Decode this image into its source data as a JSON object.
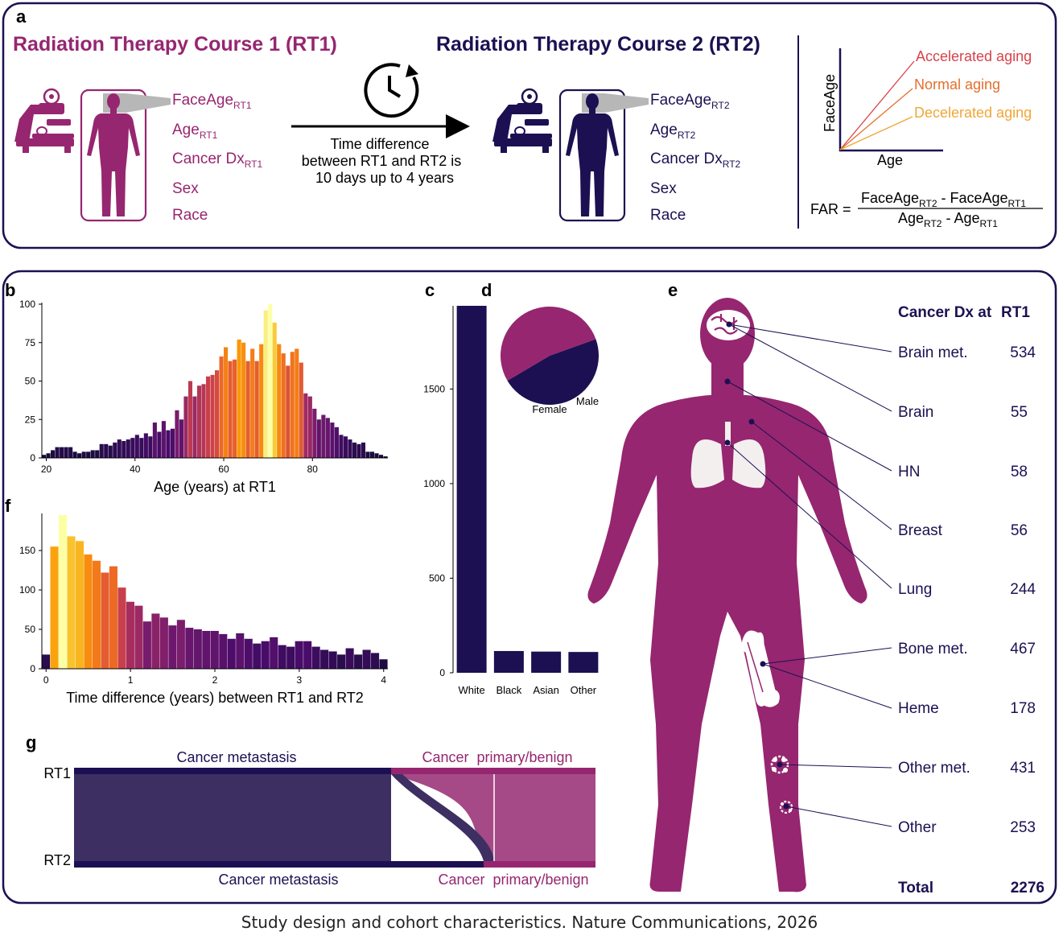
{
  "colors": {
    "magenta": "#962670",
    "navy": "#1c1052",
    "accel": "#d8434a",
    "normal": "#e2702c",
    "decel": "#f0a637",
    "lung": "#f3efef"
  },
  "panel_a": {
    "label": "a",
    "rt1_title": "Radiation Therapy Course 1 (RT1)",
    "rt2_title": "Radiation Therapy Course 2 (RT2)",
    "rt1_fields": [
      {
        "base": "FaceAge",
        "sub": "RT1"
      },
      {
        "base": "Age",
        "sub": "RT1"
      },
      {
        "base": "Cancer Dx",
        "sub": "RT1"
      },
      {
        "base": "Sex",
        "sub": ""
      },
      {
        "base": "Race",
        "sub": ""
      }
    ],
    "rt2_fields": [
      {
        "base": "FaceAge",
        "sub": "RT2"
      },
      {
        "base": "Age",
        "sub": "RT2"
      },
      {
        "base": "Cancer Dx",
        "sub": "RT2"
      },
      {
        "base": "Sex",
        "sub": ""
      },
      {
        "base": "Race",
        "sub": ""
      }
    ],
    "time_text": [
      "Time difference",
      "between RT1 and RT2 is",
      "10 days up to 4 years"
    ],
    "aging": {
      "ylabel": "FaceAge",
      "xlabel": "Age",
      "lines": [
        "Accelerated aging",
        "Normal aging",
        "Decelerated aging"
      ]
    },
    "far": {
      "lhs": "FAR =",
      "num_a": "FaceAge",
      "num_a_sub": "RT2",
      "minus": " - ",
      "num_b": "FaceAge",
      "num_b_sub": "RT1",
      "den_a": "Age",
      "den_a_sub": "RT2",
      "den_b": "Age",
      "den_b_sub": "RT1"
    },
    "icons": [
      "clock-icon",
      "radiotherapy-machine-icon",
      "human-silhouette-icon",
      "arrow-right-icon"
    ]
  },
  "panel_labels": {
    "b": "b",
    "c": "c",
    "d": "d",
    "e": "e",
    "f": "f",
    "g": "g"
  },
  "chart_data": [
    {
      "id": "b",
      "type": "bar",
      "xlabel": "Age (years) at RT1",
      "ylabel": "",
      "xlim": [
        19,
        97
      ],
      "ylim": [
        0,
        100
      ],
      "xticks": [
        20,
        40,
        60,
        80
      ],
      "yticks": [
        0,
        25,
        50,
        75,
        100
      ],
      "x_start": 19,
      "bin_width": 1,
      "values": [
        2,
        3,
        5,
        7,
        7,
        7,
        7,
        4,
        3,
        4,
        4,
        5,
        5,
        9,
        9,
        8,
        10,
        12,
        11,
        12,
        13,
        15,
        13,
        16,
        14,
        23,
        17,
        24,
        18,
        19,
        31,
        25,
        40,
        50,
        40,
        47,
        48,
        53,
        54,
        57,
        66,
        72,
        63,
        64,
        77,
        75,
        63,
        71,
        63,
        74,
        96,
        100,
        88,
        74,
        68,
        60,
        69,
        71,
        62,
        42,
        40,
        32,
        25,
        28,
        26,
        23,
        20,
        15,
        14,
        12,
        10,
        9,
        10,
        4,
        4,
        3,
        2,
        1
      ]
    },
    {
      "id": "c",
      "type": "bar",
      "xlabel": "",
      "ylabel": "",
      "categories": [
        "White",
        "Black",
        "Asian",
        "Other"
      ],
      "values": [
        1940,
        115,
        112,
        110
      ],
      "yticks": [
        0,
        500,
        1000,
        1500
      ],
      "ylim": [
        0,
        1940
      ]
    },
    {
      "id": "d",
      "type": "pie",
      "labels": [
        "Female",
        "Male"
      ],
      "values": [
        47,
        53
      ]
    },
    {
      "id": "f",
      "type": "bar",
      "xlabel": "Time difference (years) between RT1 and RT2",
      "ylabel": "",
      "xlim": [
        -0.05,
        4.05
      ],
      "ylim": [
        0,
        195
      ],
      "xticks": [
        0,
        1,
        2,
        3,
        4
      ],
      "yticks": [
        0,
        50,
        100,
        150
      ],
      "x_start": -0.05,
      "bin_width": 0.1,
      "values": [
        18,
        155,
        195,
        168,
        162,
        145,
        137,
        122,
        130,
        103,
        85,
        80,
        60,
        70,
        65,
        55,
        62,
        52,
        50,
        48,
        48,
        44,
        38,
        45,
        38,
        32,
        35,
        40,
        30,
        28,
        35,
        35,
        28,
        24,
        22,
        18,
        26,
        18,
        24,
        20,
        12
      ]
    },
    {
      "id": "e",
      "type": "table",
      "header": [
        "Cancer Dx at",
        "RT1"
      ],
      "rows": [
        {
          "label": "Brain met.",
          "value": "534"
        },
        {
          "label": "Brain",
          "value": "55"
        },
        {
          "label": "HN",
          "value": "58"
        },
        {
          "label": "Breast",
          "value": "56"
        },
        {
          "label": "Lung",
          "value": "244"
        },
        {
          "label": "Bone met.",
          "value": "467"
        },
        {
          "label": "Heme",
          "value": "178"
        },
        {
          "label": "Other met.",
          "value": "431"
        },
        {
          "label": "Other",
          "value": "253"
        }
      ],
      "total": {
        "label": "Total",
        "value": "2276"
      }
    },
    {
      "id": "g",
      "type": "sankey",
      "left_labels": [
        "RT1",
        "RT2"
      ],
      "top_labels": [
        "Cancer metastasis",
        "Cancer  primary/benign"
      ],
      "bottom_labels": [
        "Cancer metastasis",
        "Cancer  primary/benign"
      ],
      "rt1_split_fraction": 0.61,
      "rt2_split_fraction": 0.79
    }
  ],
  "caption": "Study design and cohort characteristics. Nature Communications, 2026"
}
